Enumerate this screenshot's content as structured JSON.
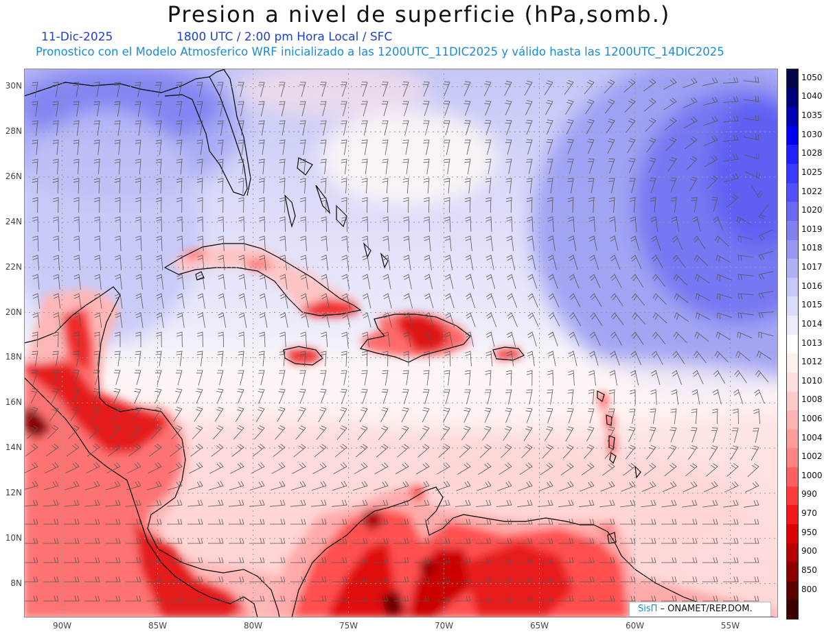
{
  "title": "Presion a nivel de superficie (hPa,somb.)",
  "date": "11-Dic-2025",
  "valid_time": "1800 UTC / 2:00 pm Hora Local / SFC",
  "forecast_info": "Pronostico con el Modelo Atmosferico WRF inicializado a las 1200UTC_11DIC2025 y válido hasta las  1200UTC_14DIC2025",
  "credit": {
    "brand": "SisΠ",
    "text": " – ONAMET/REP.DOM."
  },
  "map": {
    "lon_range": [
      -92,
      -52.5
    ],
    "lat_range": [
      6.5,
      30.8
    ],
    "lat_labels": [
      {
        "lat": 30,
        "text": "30N"
      },
      {
        "lat": 28,
        "text": "28N"
      },
      {
        "lat": 26,
        "text": "26N"
      },
      {
        "lat": 24,
        "text": "24N"
      },
      {
        "lat": 22,
        "text": "22N"
      },
      {
        "lat": 20,
        "text": "20N"
      },
      {
        "lat": 18,
        "text": "18N"
      },
      {
        "lat": 16,
        "text": "16N"
      },
      {
        "lat": 14,
        "text": "14N"
      },
      {
        "lat": 12,
        "text": "12N"
      },
      {
        "lat": 10,
        "text": "10N"
      },
      {
        "lat": 8,
        "text": "8N"
      }
    ],
    "lon_labels": [
      {
        "lon": -90,
        "text": "90W"
      },
      {
        "lon": -85,
        "text": "85W"
      },
      {
        "lon": -80,
        "text": "80W"
      },
      {
        "lon": -75,
        "text": "75W"
      },
      {
        "lon": -70,
        "text": "70W"
      },
      {
        "lon": -65,
        "text": "65W"
      },
      {
        "lon": -60,
        "text": "60W"
      },
      {
        "lon": -55,
        "text": "55W"
      }
    ]
  },
  "colorbar": [
    {
      "label": "1050",
      "color": "#05054a"
    },
    {
      "label": "1040",
      "color": "#00007a"
    },
    {
      "label": "1035",
      "color": "#0000b4"
    },
    {
      "label": "1030",
      "color": "#0000f0"
    },
    {
      "label": "1028",
      "color": "#2020ff"
    },
    {
      "label": "1025",
      "color": "#3a3aff"
    },
    {
      "label": "1022",
      "color": "#5050ff"
    },
    {
      "label": "1020",
      "color": "#6868f4"
    },
    {
      "label": "1019",
      "color": "#8080f0"
    },
    {
      "label": "1018",
      "color": "#9898f2"
    },
    {
      "label": "1017",
      "color": "#b0b0f4"
    },
    {
      "label": "1016",
      "color": "#c8c8f8"
    },
    {
      "label": "1015",
      "color": "#dcdcfa"
    },
    {
      "label": "1014",
      "color": "#ececfc"
    },
    {
      "label": "1013",
      "color": "#ffffff"
    },
    {
      "label": "1012",
      "color": "#fff0f0"
    },
    {
      "label": "1010",
      "color": "#ffe0e0"
    },
    {
      "label": "1008",
      "color": "#ffcaca"
    },
    {
      "label": "1006",
      "color": "#ffb4b4"
    },
    {
      "label": "1004",
      "color": "#ff9c9c"
    },
    {
      "label": "1002",
      "color": "#ff8484"
    },
    {
      "label": "1000",
      "color": "#ff6060"
    },
    {
      "label": "990",
      "color": "#ff3c3c"
    },
    {
      "label": "970",
      "color": "#f01818"
    },
    {
      "label": "950",
      "color": "#dc0000"
    },
    {
      "label": "900",
      "color": "#b40000"
    },
    {
      "label": "850",
      "color": "#8c0000"
    },
    {
      "label": "800",
      "color": "#5a0000"
    },
    {
      "label": "",
      "color": "#3a0000"
    }
  ]
}
